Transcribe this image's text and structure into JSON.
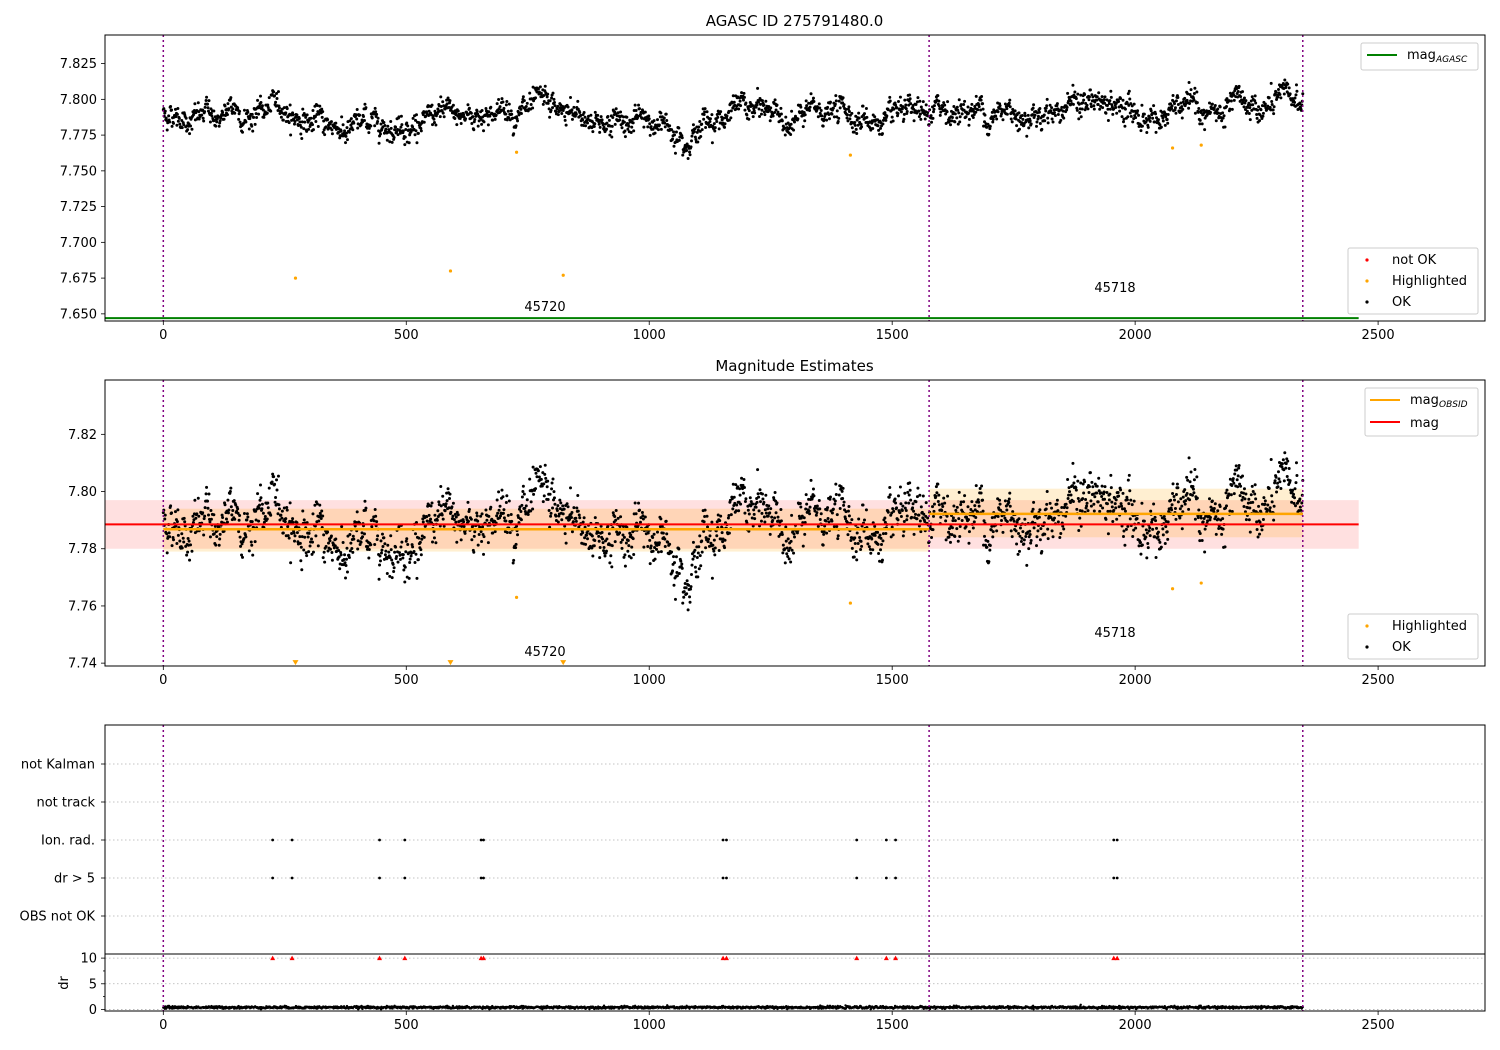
{
  "chart_data": [
    {
      "type": "scatter",
      "title": "AGASC ID 275791480.0",
      "xlim": [
        -120,
        2720
      ],
      "ylim": [
        7.645,
        7.845
      ],
      "x_ticks": [
        0,
        500,
        1000,
        1500,
        2000,
        2500
      ],
      "y_ticks": [
        7.65,
        7.675,
        7.7,
        7.725,
        7.75,
        7.775,
        7.8,
        7.825
      ],
      "y_tick_labels": [
        "7.650",
        "7.675",
        "7.700",
        "7.725",
        "7.750",
        "7.775",
        "7.800",
        "7.825"
      ],
      "grid": false,
      "obsid_boundaries": [
        0,
        1576,
        2345
      ],
      "obsid_labels": [
        {
          "text": "45720",
          "x": 785,
          "y": 7.653
        },
        {
          "text": "45718",
          "x": 1960,
          "y": 7.667
        }
      ],
      "series": [
        {
          "name": "OK",
          "color": "#000000",
          "kind": "points",
          "x_range": [
            0,
            2345
          ],
          "segments": [
            {
              "x": [
                0,
                1576
              ],
              "mean": 7.787,
              "std": 0.0075
            },
            {
              "x": [
                1576,
                2345
              ],
              "mean": 7.792,
              "std": 0.0085
            }
          ]
        },
        {
          "name": "Highlighted",
          "color": "#ffa500",
          "kind": "points",
          "x": [
            272,
            591,
            727,
            823,
            1414,
            2077,
            2136
          ],
          "y": [
            7.675,
            7.68,
            7.763,
            7.677,
            7.761,
            7.766,
            7.768
          ]
        },
        {
          "name": "not OK",
          "color": "#ff0000",
          "kind": "points",
          "x": [],
          "y": []
        },
        {
          "name": "mag_AGASC",
          "color": "#008000",
          "kind": "hline",
          "y": 7.647
        }
      ],
      "legend_upper": {
        "label_main": "mag",
        "label_sub": "AGASC",
        "placement": "top-right"
      },
      "legend_lower": [
        "not OK",
        "Highlighted",
        "OK"
      ],
      "legend_lower_placement": "bottom-right"
    },
    {
      "type": "scatter",
      "title": "Magnitude Estimates",
      "xlim": [
        -120,
        2720
      ],
      "ylim": [
        7.739,
        7.839
      ],
      "x_ticks": [
        0,
        500,
        1000,
        1500,
        2000,
        2500
      ],
      "y_ticks": [
        7.74,
        7.76,
        7.78,
        7.8,
        7.82
      ],
      "y_tick_labels": [
        "7.74",
        "7.76",
        "7.78",
        "7.80",
        "7.82"
      ],
      "grid": false,
      "obsid_boundaries": [
        0,
        1576,
        2345
      ],
      "obsid_labels": [
        {
          "text": "45720",
          "x": 785,
          "y": 7.743
        },
        {
          "text": "45718",
          "x": 1960,
          "y": 7.75
        }
      ],
      "mag": {
        "value": 7.7885,
        "band_low": 7.78,
        "band_high": 7.797,
        "x_range": [
          -120,
          2460
        ],
        "color": "#ff0000"
      },
      "mag_obsid": [
        {
          "x": [
            0,
            1576
          ],
          "value": 7.7868,
          "band_low": 7.779,
          "band_high": 7.794
        },
        {
          "x": [
            1576,
            2345
          ],
          "value": 7.7922,
          "band_low": 7.784,
          "band_high": 7.801
        }
      ],
      "highlighted_clipped_x": [
        272,
        591,
        823
      ],
      "highlighted_clipped_y": 7.74,
      "legend_upper": [
        {
          "label_main": "mag",
          "label_sub": "OBSID",
          "color": "#ffa500"
        },
        {
          "label_main": "mag",
          "label_sub": "",
          "color": "#ff0000"
        }
      ],
      "legend_lower": [
        "Highlighted",
        "OK"
      ]
    },
    {
      "type": "scatter",
      "title": "",
      "xlim": [
        -120,
        2720
      ],
      "x_ticks": [
        0,
        500,
        1000,
        1500,
        2000,
        2500
      ],
      "flag_rows": [
        "not Kalman",
        "not track",
        "Ion. rad.",
        "dr > 5",
        "OBS not OK"
      ],
      "flags_x": {
        "Ion. rad.": [
          225,
          265,
          445,
          497,
          654,
          659,
          1152,
          1159,
          1427,
          1488,
          1507,
          1956,
          1963
        ],
        "dr > 5": [
          225,
          265,
          445,
          497,
          654,
          659,
          1152,
          1159,
          1427,
          1488,
          1507,
          1956,
          1963
        ],
        "not Kalman": [],
        "not track": [],
        "OBS not OK": []
      },
      "dr": {
        "ylabel": "dr",
        "ylim": [
          -0.3,
          10.8
        ],
        "y_ticks": [
          0,
          5,
          10
        ],
        "y_tick_labels": [
          "0",
          "5",
          "10"
        ],
        "clip_value": 10,
        "clipped_x": [
          225,
          265,
          445,
          497,
          654,
          659,
          1152,
          1159,
          1427,
          1488,
          1507,
          1956,
          1963
        ],
        "typical": 0.4
      }
    }
  ]
}
